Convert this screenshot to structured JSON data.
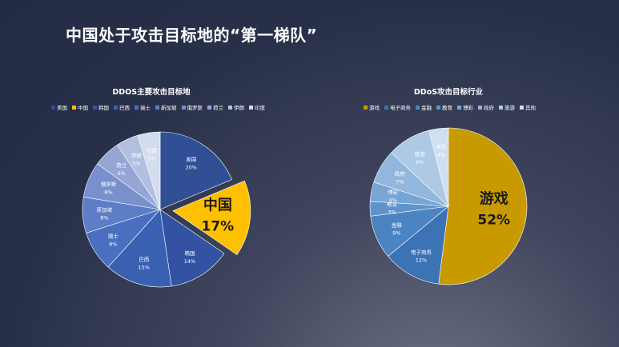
{
  "slide": {
    "title": "中国处于攻击目标地的“第一梯队”"
  },
  "chart_data": [
    {
      "type": "pie",
      "title": "DDOS主要攻击目标地",
      "categories": [
        "美国",
        "中国",
        "韩国",
        "巴西",
        "瑞士",
        "新加坡",
        "俄罗斯",
        "荷兰",
        "伊朗",
        "印度"
      ],
      "values": [
        20,
        17,
        14,
        15,
        9,
        8,
        8,
        6,
        5,
        5
      ],
      "value_labels": [
        "20%",
        "17%",
        "14%",
        "15%",
        "9%",
        "8%",
        "8%",
        "6%",
        "5%",
        "5%"
      ],
      "exploded": "中国",
      "colors": [
        "#304f94",
        "#ffc000",
        "#3353a2",
        "#3a60b2",
        "#4a6fc0",
        "#5d7dc6",
        "#7990cc",
        "#95a6d4",
        "#b2bfe0",
        "#d3dbee"
      ],
      "legend_position": "top"
    },
    {
      "type": "pie",
      "title": "DDoS攻击目标行业",
      "categories": [
        "游戏",
        "电子商务",
        "金融",
        "教育",
        "博彩",
        "政府",
        "旅游",
        "其他"
      ],
      "values": [
        52,
        12,
        9,
        3,
        4,
        7,
        9,
        4
      ],
      "value_labels": [
        "52%",
        "12%",
        "9%",
        "3%",
        "4%",
        "7%",
        "9%",
        "4%"
      ],
      "highlight": "游戏",
      "colors": [
        "#c99a00",
        "#3c73b4",
        "#4a84c2",
        "#5e93cb",
        "#77a5d4",
        "#92b7dd",
        "#adc9e6",
        "#cedff0"
      ],
      "legend_position": "top"
    }
  ]
}
